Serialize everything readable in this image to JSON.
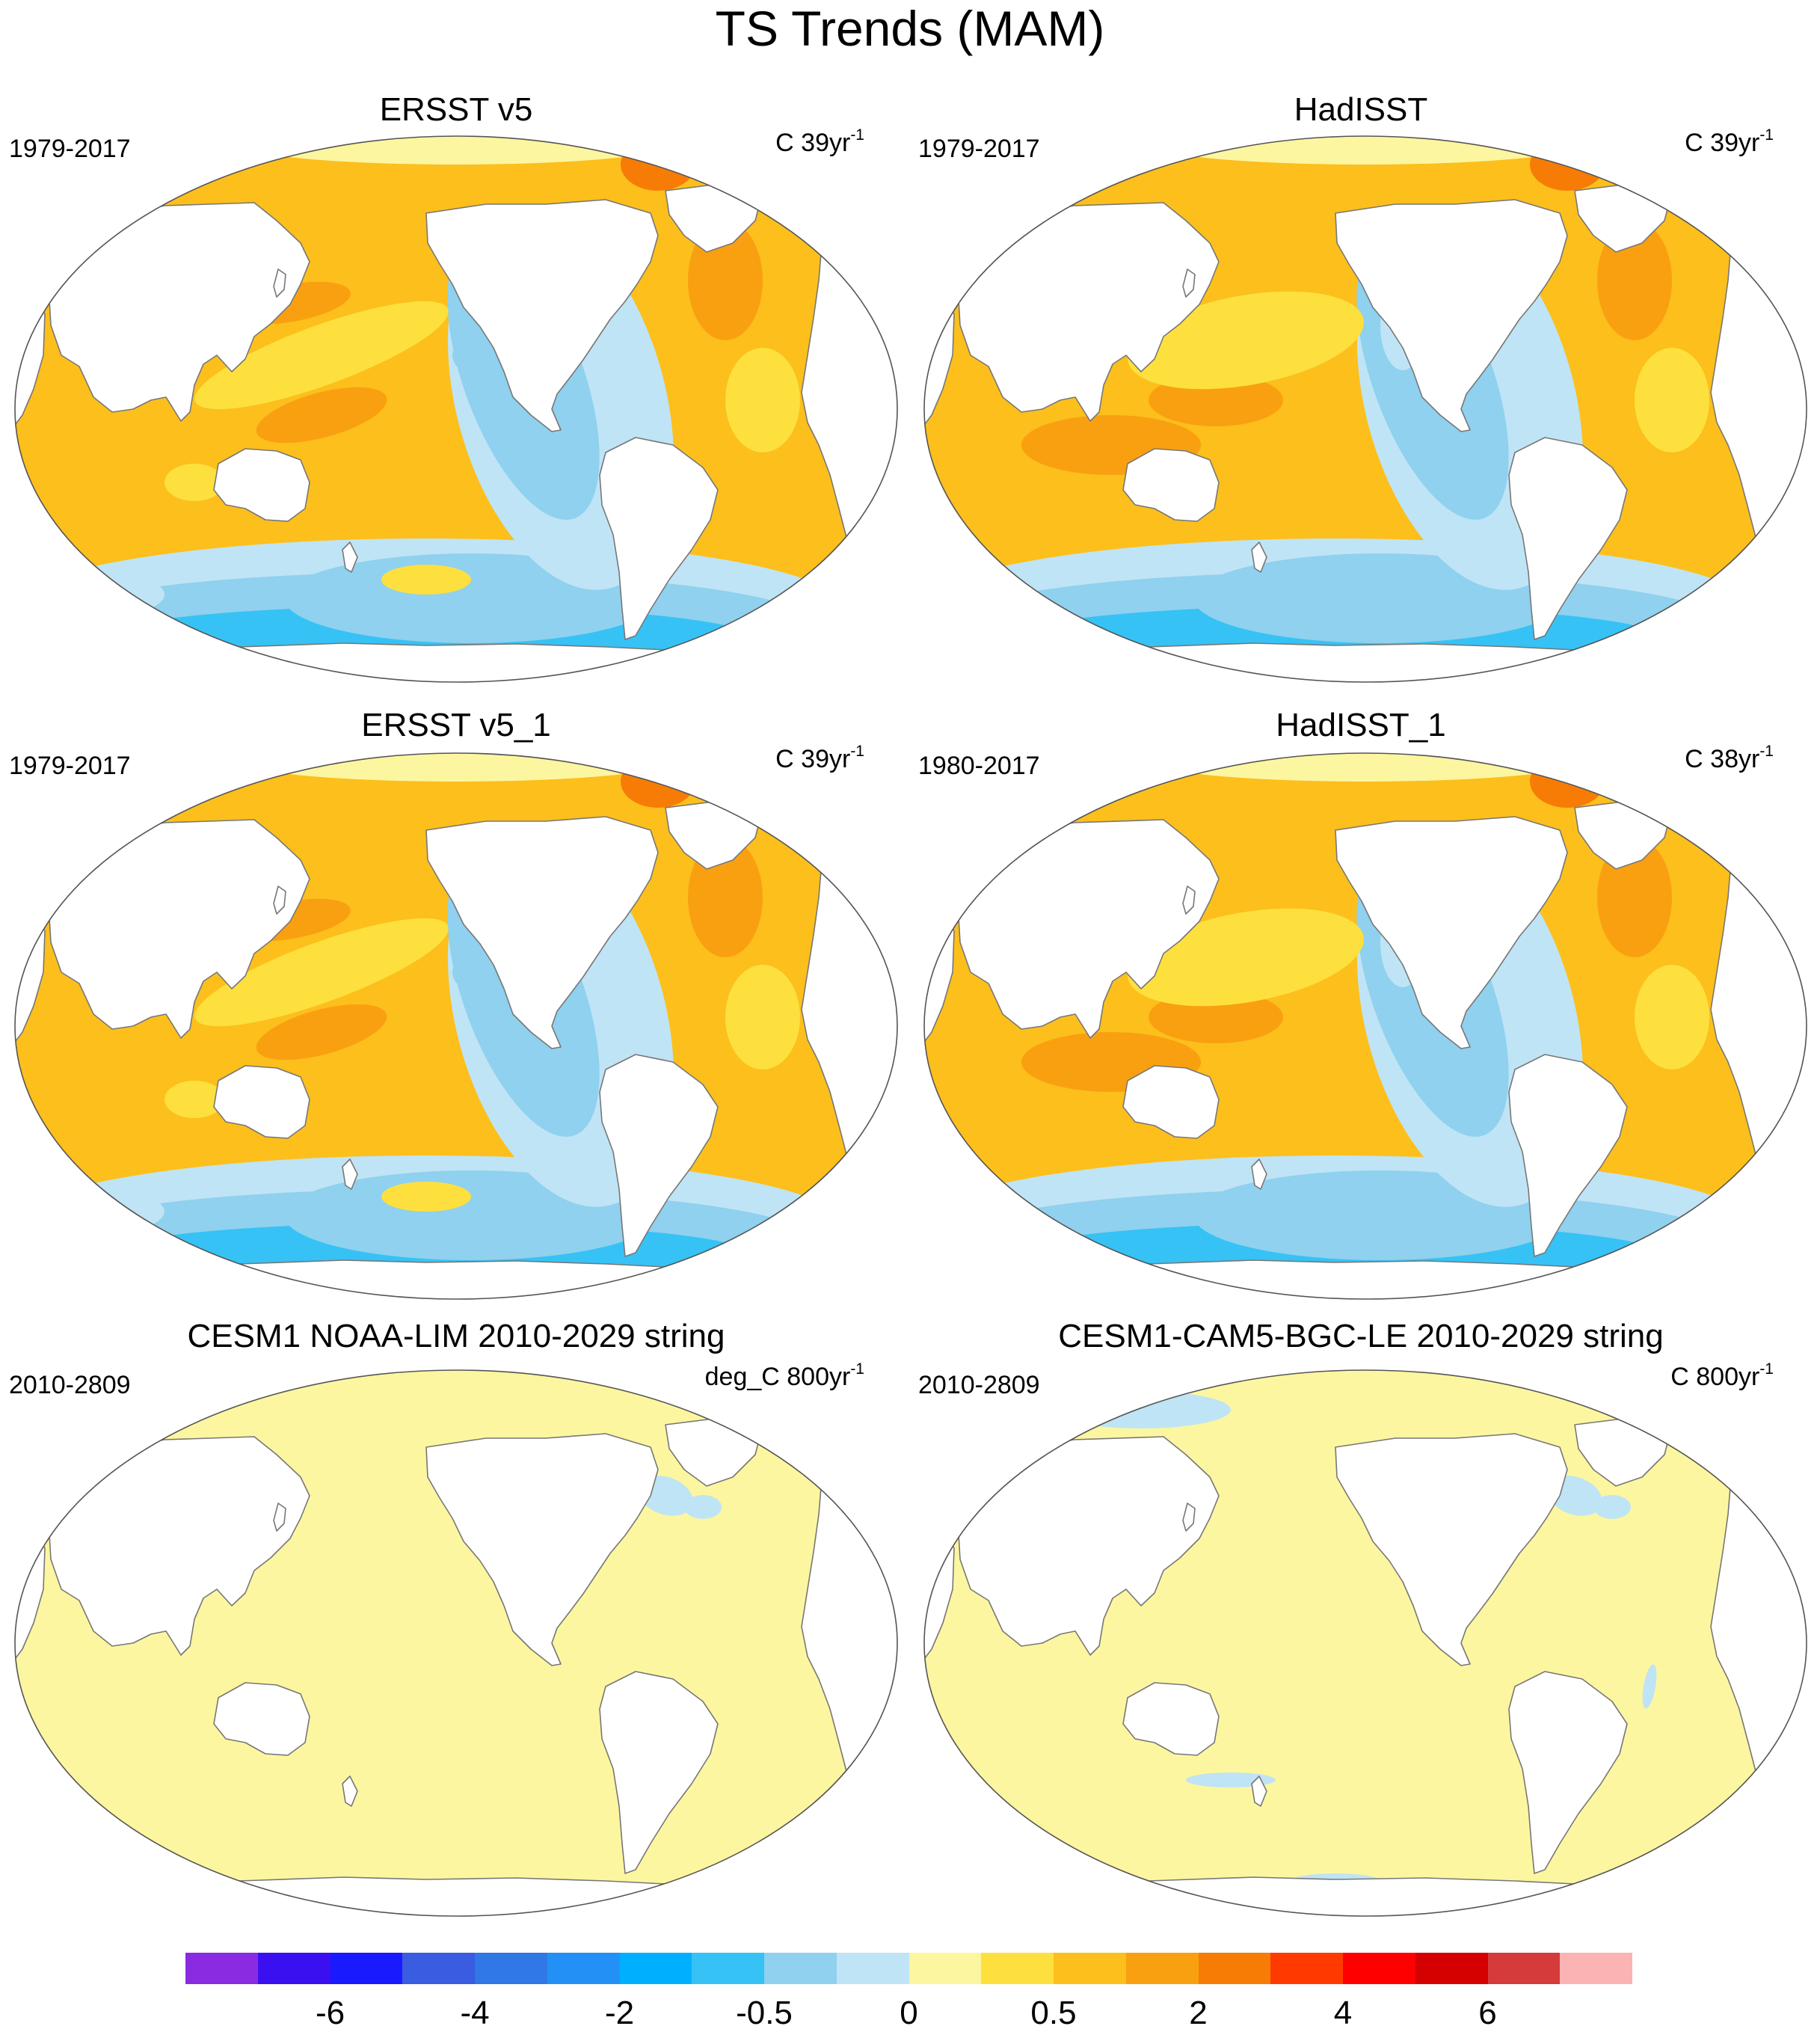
{
  "title": "TS Trends (MAM)",
  "panels": [
    {
      "id": "ersst",
      "title": "ERSST v5",
      "period": "1979-2017",
      "units_base": "C 39yr",
      "units_sup": "-1",
      "pattern": "obs_smooth"
    },
    {
      "id": "hadisst",
      "title": "HadISST",
      "period": "1979-2017",
      "units_base": "C 39yr",
      "units_sup": "-1",
      "pattern": "obs_noisy"
    },
    {
      "id": "ersst1",
      "title": "ERSST v5_1",
      "period": "1979-2017",
      "units_base": "C 39yr",
      "units_sup": "-1",
      "pattern": "obs_smooth"
    },
    {
      "id": "hadisst1",
      "title": "HadISST_1",
      "period": "1980-2017",
      "units_base": "C 38yr",
      "units_sup": "-1",
      "pattern": "obs_noisy"
    },
    {
      "id": "cesm_lim",
      "title": "CESM1 NOAA-LIM 2010-2029 string",
      "period": "2010-2809",
      "units_base": "deg_C 800yr",
      "units_sup": "-1",
      "pattern": "model"
    },
    {
      "id": "cesm_bgc",
      "title": "CESM1-CAM5-BGC-LE 2010-2029 string",
      "period": "2010-2809",
      "units_base": "C 800yr",
      "units_sup": "-1",
      "pattern": "model"
    }
  ],
  "colorbar": {
    "colors": [
      "#8a2be2",
      "#3b10f0",
      "#1a1aff",
      "#3a5ce0",
      "#2f78e6",
      "#2390f5",
      "#00b0ff",
      "#36c2f5",
      "#8fd1ee",
      "#bfe4f5",
      "#fdf6a0",
      "#fde03e",
      "#fcbf1c",
      "#f9a011",
      "#f77c06",
      "#ff3a00",
      "#ff0000",
      "#d50000",
      "#d63b3b",
      "#fbb3b3"
    ],
    "labels": [
      "-6",
      "-4",
      "-2",
      "-0.5",
      "0",
      "0.5",
      "2",
      "4",
      "6"
    ]
  },
  "palette": {
    "land": "#ffffff",
    "coast": "#777777"
  }
}
